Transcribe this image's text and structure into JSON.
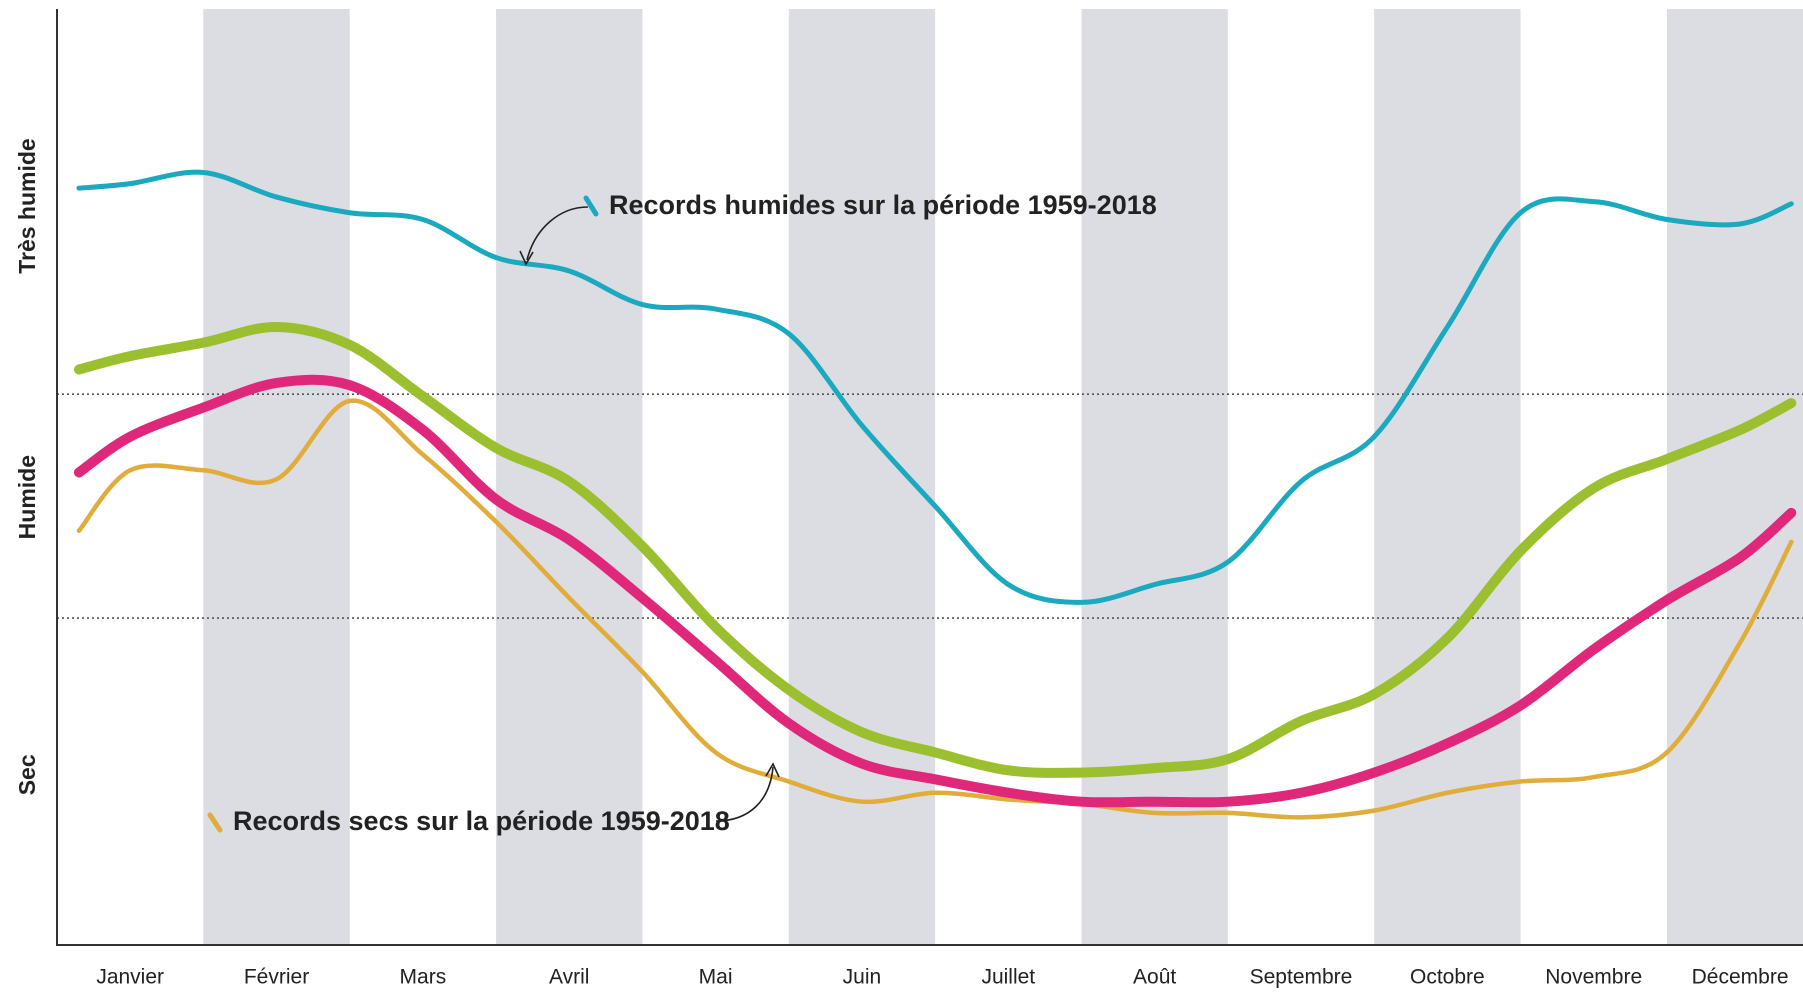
{
  "chart_data": {
    "type": "line",
    "categories": [
      "Janvier",
      "Février",
      "Mars",
      "Avril",
      "Mai",
      "Juin",
      "Juillet",
      "Août",
      "Septembre",
      "Octobre",
      "Novembre",
      "Décembre"
    ],
    "x": [
      0.15,
      0.5,
      1,
      1.5,
      2,
      2.5,
      3,
      3.5,
      4,
      4.5,
      5,
      5.5,
      6,
      6.5,
      7,
      7.5,
      8,
      8.5,
      9,
      9.5,
      10,
      10.5,
      11,
      11.5,
      11.85
    ],
    "xlim": [
      0,
      11.93
    ],
    "ylim": [
      -0.46,
      3.72
    ],
    "yticks": [
      {
        "value": 0.3,
        "label": "Sec"
      },
      {
        "value": 1.54,
        "label": "Humide"
      },
      {
        "value": 2.84,
        "label": "Très humide"
      }
    ],
    "dividers": [
      1,
      2
    ],
    "series": [
      {
        "name": "Records humides sur la période 1959-2018",
        "color": "#1ba9bf",
        "values": [
          2.92,
          2.94,
          2.99,
          2.88,
          2.81,
          2.78,
          2.61,
          2.55,
          2.4,
          2.38,
          2.27,
          1.86,
          1.5,
          1.15,
          1.07,
          1.15,
          1.25,
          1.61,
          1.81,
          2.3,
          2.81,
          2.86,
          2.78,
          2.76,
          2.85
        ]
      },
      {
        "name": null,
        "color": "#9bbf2e",
        "values": [
          2.11,
          2.17,
          2.23,
          2.3,
          2.22,
          1.99,
          1.76,
          1.61,
          1.32,
          0.96,
          0.68,
          0.49,
          0.4,
          0.32,
          0.31,
          0.33,
          0.37,
          0.54,
          0.66,
          0.91,
          1.3,
          1.58,
          1.71,
          1.84,
          1.96
        ]
      },
      {
        "name": null,
        "color": "#e0287a",
        "values": [
          1.65,
          1.81,
          1.94,
          2.05,
          2.04,
          1.84,
          1.53,
          1.35,
          1.09,
          0.81,
          0.53,
          0.35,
          0.28,
          0.22,
          0.18,
          0.18,
          0.18,
          0.22,
          0.31,
          0.44,
          0.61,
          0.86,
          1.08,
          1.27,
          1.47
        ]
      },
      {
        "name": "Records secs sur la période 1959-2018",
        "color": "#e0ac3a",
        "values": [
          1.39,
          1.66,
          1.66,
          1.62,
          1.97,
          1.73,
          1.43,
          1.09,
          0.76,
          0.4,
          0.27,
          0.18,
          0.22,
          0.19,
          0.17,
          0.13,
          0.13,
          0.11,
          0.14,
          0.22,
          0.27,
          0.29,
          0.4,
          0.89,
          1.34
        ]
      }
    ]
  }
}
